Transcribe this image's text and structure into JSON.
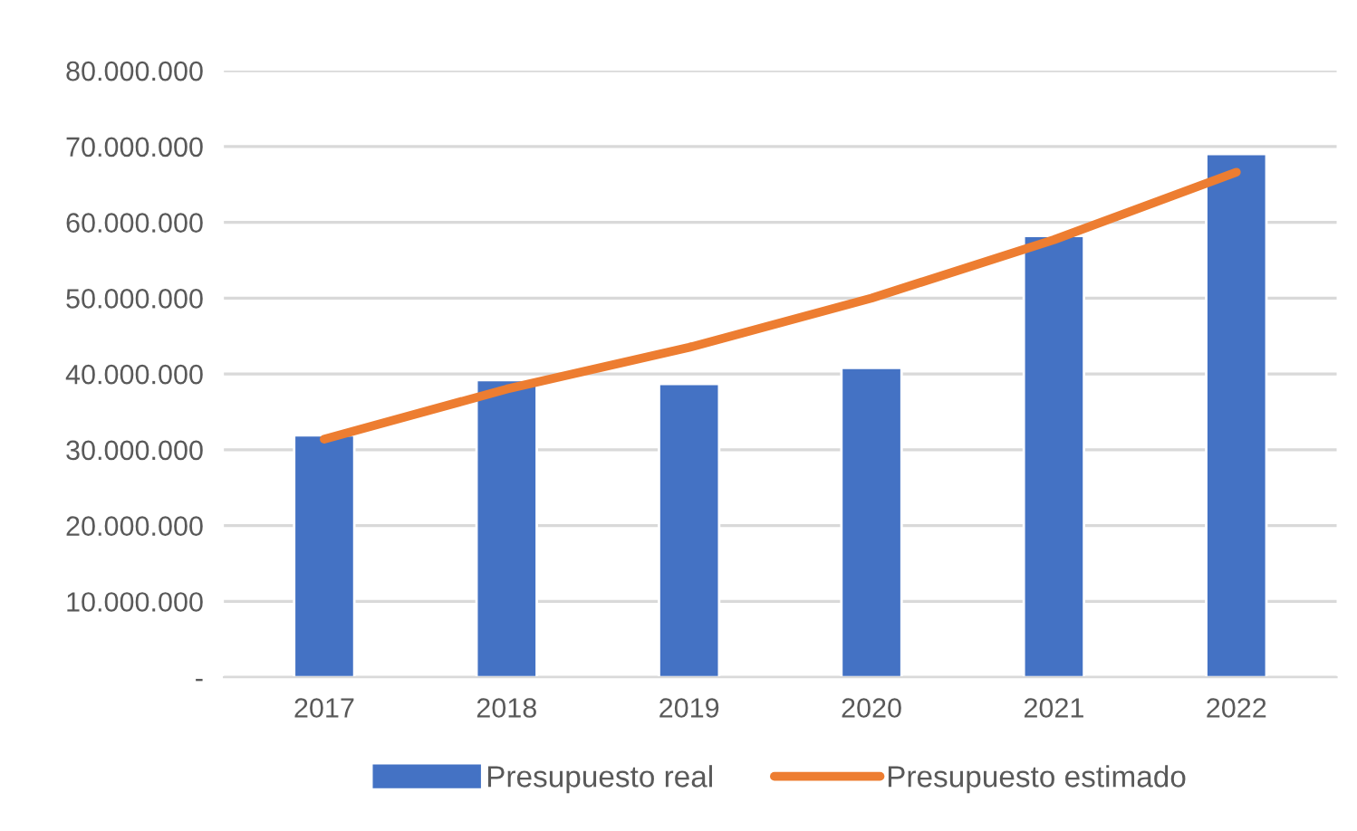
{
  "chart_data": {
    "type": "bar",
    "categories": [
      "2017",
      "2018",
      "2019",
      "2020",
      "2021",
      "2022"
    ],
    "series": [
      {
        "name": "Presupuesto real",
        "color": "#4472c4",
        "values": [
          31900000,
          39200000,
          38700000,
          40800000,
          58200000,
          69000000
        ]
      },
      {
        "name": "Presupuesto estimado",
        "type": "line",
        "color": "#ed7d31",
        "values": [
          31400000,
          38000000,
          43500000,
          50000000,
          57700000,
          66600000
        ]
      }
    ],
    "ylim": [
      0,
      80000000
    ],
    "yticks": [
      {
        "value": 0,
        "label": "-"
      },
      {
        "value": 10000000,
        "label": "10.000.000"
      },
      {
        "value": 20000000,
        "label": "20.000.000"
      },
      {
        "value": 30000000,
        "label": "30.000.000"
      },
      {
        "value": 40000000,
        "label": "40.000.000"
      },
      {
        "value": 50000000,
        "label": "50.000.000"
      },
      {
        "value": 60000000,
        "label": "60.000.000"
      },
      {
        "value": 70000000,
        "label": "70.000.000"
      },
      {
        "value": 80000000,
        "label": "80.000.000"
      }
    ],
    "grid": "y",
    "legend": "bottom",
    "marker": "none"
  }
}
